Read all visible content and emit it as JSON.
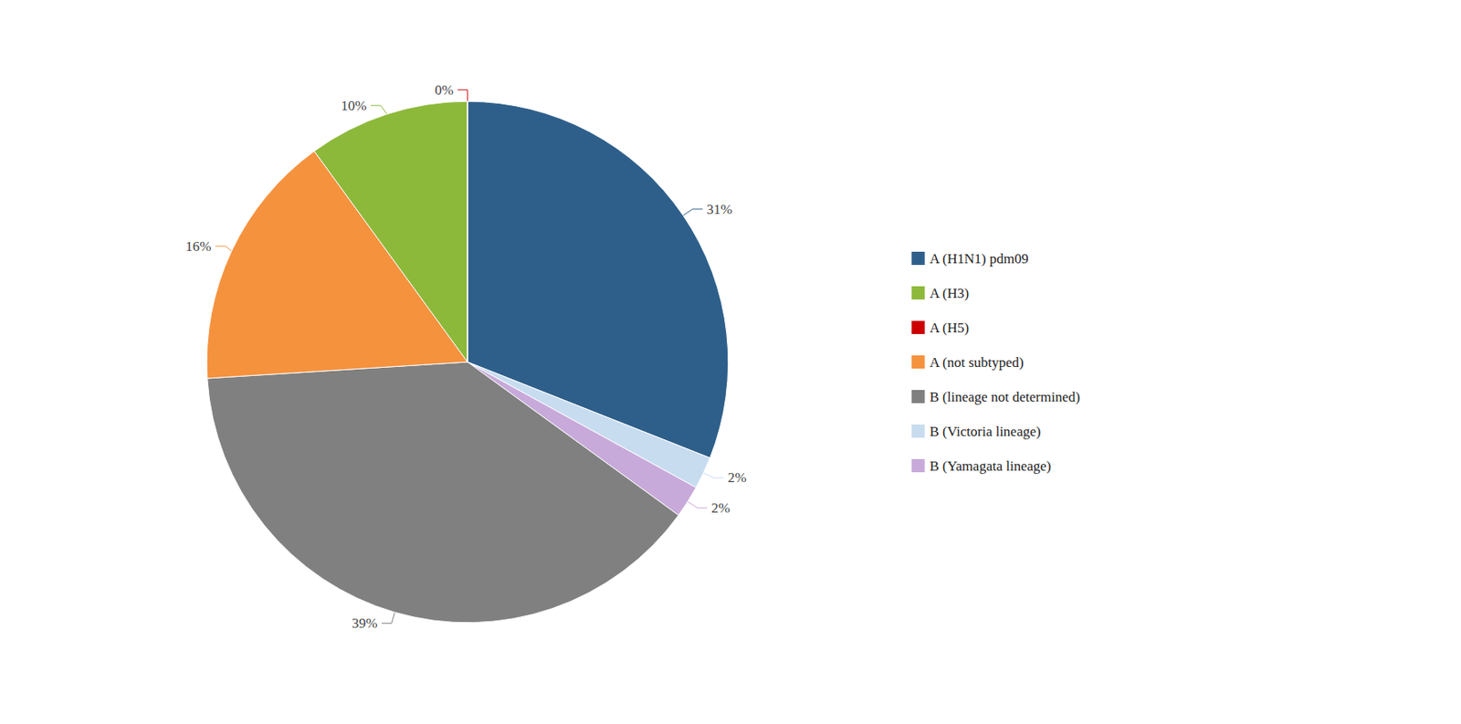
{
  "chart_data": {
    "type": "pie",
    "categories": [
      "A (H1N1) pdm09",
      "B (Victoria lineage)",
      "B (Yamagata lineage)",
      "B (lineage not determined)",
      "A (not subtyped)",
      "A (H3)",
      "A (H5)"
    ],
    "values": [
      31,
      2,
      2,
      39,
      16,
      10,
      0
    ],
    "value_labels": [
      "31%",
      "2%",
      "2%",
      "39%",
      "16%",
      "10%",
      "0%"
    ],
    "colors": [
      "#2E5F8A",
      "#C8DCF0",
      "#C8AADA",
      "#808080",
      "#F5923E",
      "#8DB93A",
      "#CC0000"
    ],
    "data_labels": true,
    "legend": "right"
  }
}
